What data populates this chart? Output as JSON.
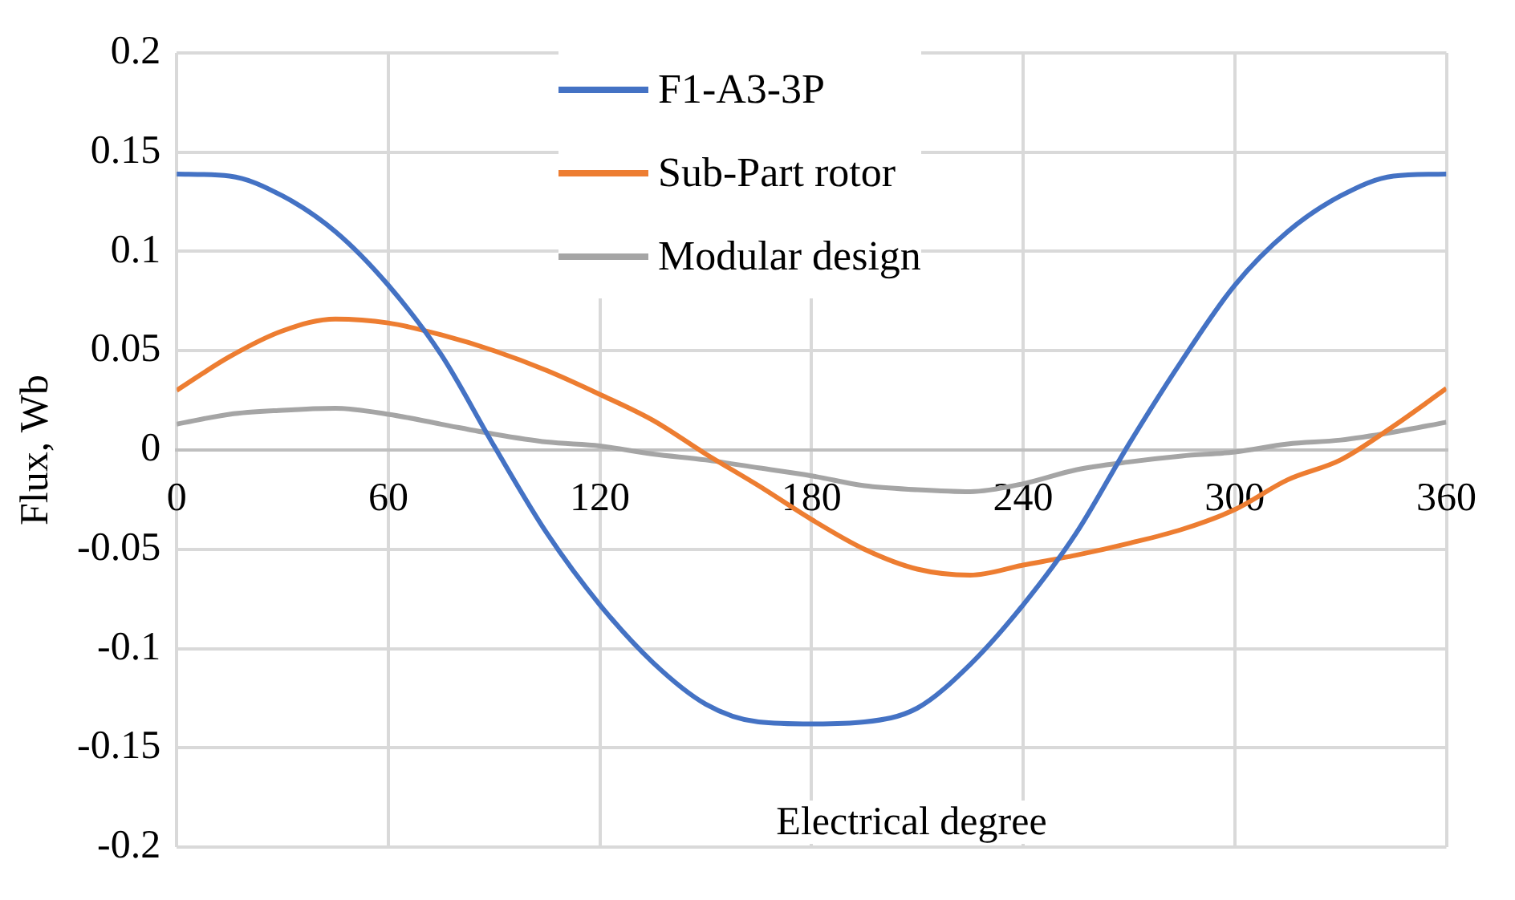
{
  "chart_data": {
    "type": "line",
    "xlabel": "Electrical degree",
    "ylabel": "Flux, Wb",
    "x": [
      0,
      15,
      30,
      45,
      60,
      75,
      90,
      105,
      120,
      135,
      150,
      165,
      180,
      195,
      210,
      225,
      240,
      255,
      270,
      285,
      300,
      315,
      330,
      345,
      360
    ],
    "series": [
      {
        "name": "F1-A3-3P",
        "color": "#4472c4",
        "values": [
          0.139,
          0.138,
          0.128,
          0.11,
          0.083,
          0.048,
          0.002,
          -0.042,
          -0.078,
          -0.107,
          -0.128,
          -0.137,
          -0.138,
          -0.137,
          -0.13,
          -0.108,
          -0.078,
          -0.042,
          0.003,
          0.045,
          0.083,
          0.11,
          0.128,
          0.138,
          0.139
        ]
      },
      {
        "name": "Sub-Part rotor",
        "color": "#ed7d31",
        "values": [
          0.03,
          0.047,
          0.06,
          0.066,
          0.064,
          0.058,
          0.05,
          0.04,
          0.028,
          0.015,
          -0.002,
          -0.018,
          -0.035,
          -0.05,
          -0.06,
          -0.063,
          -0.058,
          -0.053,
          -0.047,
          -0.04,
          -0.03,
          -0.015,
          -0.005,
          0.012,
          0.031
        ]
      },
      {
        "name": "Modular design",
        "color": "#a5a5a5",
        "values": [
          0.013,
          0.018,
          0.02,
          0.021,
          0.018,
          0.013,
          0.008,
          0.004,
          0.002,
          -0.002,
          -0.005,
          -0.009,
          -0.013,
          -0.018,
          -0.02,
          -0.021,
          -0.017,
          -0.01,
          -0.006,
          -0.003,
          -0.001,
          0.003,
          0.005,
          0.009,
          0.014
        ]
      }
    ],
    "xlim": [
      0,
      360
    ],
    "xticks": [
      0,
      60,
      120,
      180,
      240,
      300,
      360
    ],
    "ylim": [
      -0.2,
      0.2
    ],
    "yticks": [
      -0.2,
      -0.15,
      -0.1,
      -0.05,
      0,
      0.05,
      0.1,
      0.15,
      0.2
    ],
    "grid": true,
    "legend": "top",
    "marker": "none",
    "line_style": "solid"
  }
}
